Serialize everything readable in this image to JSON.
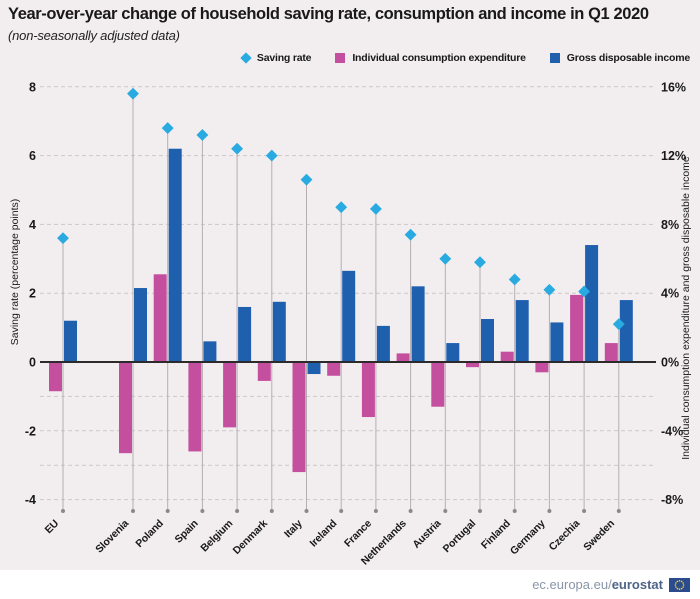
{
  "header": {
    "title": "Year-over-year change of household saving rate, consumption and income in Q1 2020",
    "subtitle": "(non-seasonally adjusted data)"
  },
  "legend": [
    {
      "label": "Saving rate",
      "color": "#29aae1",
      "shape": "diamond"
    },
    {
      "label": "Individual consumption expenditure",
      "color": "#c44f9f",
      "shape": "square"
    },
    {
      "label": "Gross disposable income",
      "color": "#1e5fae",
      "shape": "square"
    }
  ],
  "left_axis": {
    "title": "Saving rate (percentage points)",
    "ticks": [
      "8",
      "6",
      "4",
      "2",
      "0",
      "-2",
      "-4"
    ],
    "values": [
      8,
      6,
      4,
      2,
      0,
      -2,
      -4
    ]
  },
  "right_axis": {
    "title": "Individual consumption expenditure and gross disposable income",
    "ticks": [
      "16%",
      "12%",
      "8%",
      "4%",
      "0%",
      "-4%",
      "-8%"
    ],
    "values": [
      8,
      6,
      4,
      2,
      0,
      -2,
      -4
    ]
  },
  "footer": {
    "url_prefix": "ec.europa.eu/",
    "url_bold": "eurostat"
  },
  "colors": {
    "background": "#f2eeef",
    "saving_rate": "#29aae1",
    "consumption": "#c44f9f",
    "income": "#1e5fae",
    "zero_line": "#2d2a2c",
    "gridline": "#cdc5c8"
  },
  "chart_data": {
    "type": "bar",
    "note": "grouped bars (consumption, income) on right % axis plus diamond scatter (saving rate) on left pp axis",
    "categories": [
      "EU",
      "Slovenia",
      "Poland",
      "Spain",
      "Belgium",
      "Denmark",
      "Italy",
      "Ireland",
      "France",
      "Netherlands",
      "Austria",
      "Portugal",
      "Finland",
      "Germany",
      "Czechia",
      "Sweden"
    ],
    "series": [
      {
        "name": "Saving rate",
        "type": "scatter-diamond",
        "axis": "left",
        "unit": "percentage points",
        "values": [
          3.6,
          7.8,
          6.8,
          6.6,
          6.2,
          6.0,
          5.3,
          4.5,
          4.45,
          3.7,
          3.0,
          2.9,
          2.4,
          2.1,
          2.05,
          1.1
        ]
      },
      {
        "name": "Individual consumption expenditure",
        "type": "bar",
        "axis": "right",
        "unit": "%",
        "values": [
          -1.7,
          -5.3,
          5.1,
          -5.2,
          -3.8,
          -1.1,
          -6.4,
          -0.8,
          -3.2,
          0.5,
          -2.6,
          -0.3,
          0.6,
          -0.6,
          3.9,
          1.1
        ]
      },
      {
        "name": "Gross disposable income",
        "type": "bar",
        "axis": "right",
        "unit": "%",
        "values": [
          2.4,
          4.3,
          12.4,
          1.2,
          3.2,
          3.5,
          -0.7,
          5.3,
          2.1,
          4.4,
          1.1,
          2.5,
          3.6,
          2.3,
          6.8,
          3.6
        ]
      }
    ],
    "left_ylim": [
      -4.8,
      8.6
    ],
    "right_ylim": [
      -9.6,
      17.2
    ],
    "grid_left_values": [
      8,
      6,
      4,
      2,
      -1,
      -2,
      -3,
      -4
    ],
    "grid": "horizontal dashed",
    "legend_position": "top-right"
  }
}
